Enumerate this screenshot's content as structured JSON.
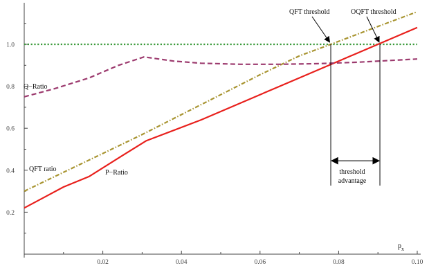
{
  "chart_data": {
    "type": "line",
    "title": "",
    "xlabel": "p",
    "xlabel_sub": "x",
    "ylabel": "",
    "xlim": [
      0,
      0.1
    ],
    "ylim": [
      0,
      1.2
    ],
    "xticks": [
      0.02,
      0.04,
      0.06,
      0.08,
      0.1
    ],
    "xtick_labels": [
      "0.02",
      "0.04",
      "0.06",
      "0.08",
      "0.10"
    ],
    "yticks": [
      0.2,
      0.4,
      0.6,
      0.8,
      1.0
    ],
    "ytick_labels": [
      "0.2",
      "0.4",
      "0.6",
      "0.8",
      "1.0"
    ],
    "grid": false,
    "legend": "none",
    "series": [
      {
        "name": "P−Ratio",
        "color": "#e8201c",
        "style": "solid",
        "x": [
          0,
          0.005,
          0.01,
          0.0165,
          0.025,
          0.031,
          0.045,
          0.06,
          0.07,
          0.08,
          0.09,
          0.1
        ],
        "y": [
          0.22,
          0.27,
          0.32,
          0.37,
          0.47,
          0.54,
          0.64,
          0.76,
          0.84,
          0.92,
          1.0,
          1.08
        ]
      },
      {
        "name": "QFT ratio",
        "color": "#a89430",
        "style": "dashdot",
        "x": [
          0,
          0.01,
          0.02,
          0.03,
          0.04,
          0.05,
          0.06,
          0.07,
          0.078,
          0.09,
          0.1
        ],
        "y": [
          0.3,
          0.39,
          0.48,
          0.57,
          0.665,
          0.76,
          0.855,
          0.945,
          1.0,
          1.085,
          1.155
        ]
      },
      {
        "name": "Q−Ratio",
        "color": "#9c3a6e",
        "style": "dashed",
        "x": [
          0,
          0.008,
          0.0165,
          0.024,
          0.0305,
          0.038,
          0.045,
          0.055,
          0.065,
          0.075,
          0.085,
          0.1
        ],
        "y": [
          0.75,
          0.79,
          0.84,
          0.9,
          0.94,
          0.92,
          0.91,
          0.905,
          0.905,
          0.908,
          0.915,
          0.93
        ]
      }
    ],
    "reference_line": {
      "y": 1.0,
      "color": "#3a9a3a",
      "style": "dotted"
    },
    "annotations": {
      "qft_threshold": {
        "text": "QFT threshold",
        "x": 0.078
      },
      "oqft_threshold": {
        "text": "OQFT threshold",
        "x": 0.0905
      },
      "threshold_advantage": {
        "line1": "threshold",
        "line2": "advantage",
        "arrow_y": 0.445
      },
      "q_ratio_label": "Q−Ratio",
      "qft_ratio_label": "QFT ratio",
      "p_ratio_label": "P−Ratio"
    }
  }
}
